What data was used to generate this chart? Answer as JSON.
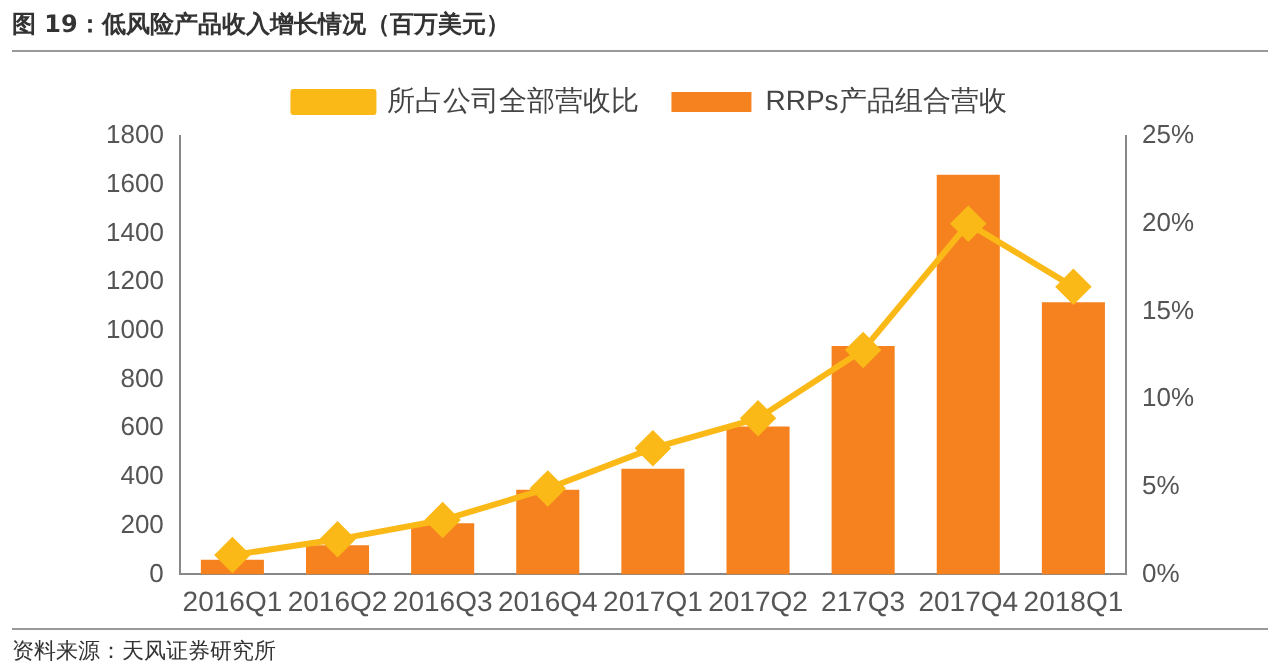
{
  "chart_data": {
    "type": "bar",
    "title": "图 19：低风险产品收入增长情况（百万美元）",
    "categories": [
      "2016Q1",
      "2016Q2",
      "2016Q3",
      "2016Q4",
      "2017Q1",
      "2017Q2",
      "217Q3",
      "2017Q4",
      "2018Q1"
    ],
    "series": [
      {
        "name": "RRPs产品组合营收",
        "color": "#f5821f",
        "values": [
          60,
          120,
          210,
          348,
          434,
          607,
          938,
          1641,
          1117
        ]
      },
      {
        "name": "所占公司全部营收比",
        "type": "line",
        "axis": "y2",
        "color": "#fbb917",
        "marker": "diamond",
        "values": [
          1.1,
          2.0,
          3.1,
          4.9,
          7.2,
          8.9,
          12.8,
          20.0,
          16.4
        ]
      }
    ],
    "ylim": [
      0,
      1800
    ],
    "yticks": [
      0,
      200,
      400,
      600,
      800,
      1000,
      1200,
      1400,
      1600,
      1800
    ],
    "y2lim": [
      0,
      25
    ],
    "y2ticks": [
      {
        "value": 0,
        "label": "0%"
      },
      {
        "value": 5,
        "label": "5%"
      },
      {
        "value": 10,
        "label": "10%"
      },
      {
        "value": 15,
        "label": "15%"
      },
      {
        "value": 20,
        "label": "20%"
      },
      {
        "value": 25,
        "label": "25%"
      }
    ],
    "grid": false,
    "legend": "top",
    "annotations": [
      "资料来源：天风证券研究所"
    ]
  }
}
